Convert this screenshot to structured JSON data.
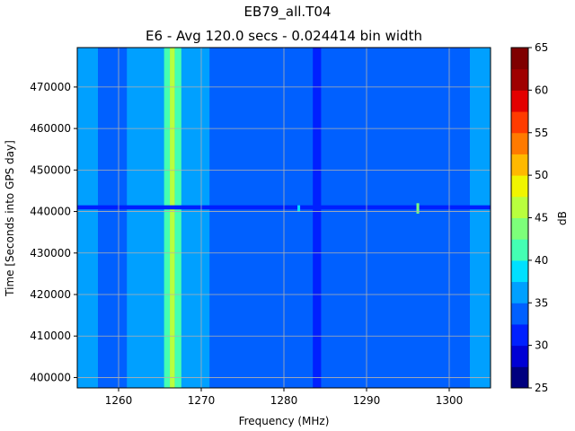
{
  "chart_data": {
    "type": "heatmap",
    "title": "EB79_all.T04",
    "subtitle": "E6 - Avg 120.0 secs - 0.024414 bin width",
    "xlabel": "Frequency (MHz)",
    "ylabel": "Time [Seconds into GPS day]",
    "xlim": [
      1255,
      1305
    ],
    "ylim": [
      397500,
      479500
    ],
    "xticks": [
      1260,
      1270,
      1280,
      1290,
      1300
    ],
    "yticks": [
      400000,
      410000,
      420000,
      430000,
      440000,
      450000,
      460000,
      470000
    ],
    "grid": true,
    "colorbar": {
      "label": "dB",
      "min": 25,
      "max": 65,
      "step": 2.5,
      "ticks": [
        25,
        30,
        35,
        40,
        45,
        50,
        55,
        60,
        65
      ],
      "colors": [
        "#00007f",
        "#0000d4",
        "#0020ff",
        "#0060ff",
        "#00a0ff",
        "#00e0ff",
        "#44ffb3",
        "#7dff7a",
        "#b9ff3e",
        "#f0f500",
        "#ffb900",
        "#ff7a00",
        "#ff3b00",
        "#e30000",
        "#9f0000",
        "#7f0000"
      ]
    },
    "background_level_db": 32.5,
    "features": [
      {
        "type": "vertical_band",
        "x_range": [
          1255.0,
          1257.5
        ],
        "level_db": 36
      },
      {
        "type": "vertical_band",
        "x_range": [
          1257.5,
          1261.0
        ],
        "level_db": 34
      },
      {
        "type": "vertical_band",
        "x_range": [
          1261.0,
          1262.5
        ],
        "level_db": 37
      },
      {
        "type": "vertical_band",
        "x_range": [
          1262.5,
          1265.5
        ],
        "level_db": 35
      },
      {
        "type": "vertical_band",
        "x_range": [
          1265.5,
          1266.2
        ],
        "level_db": 42
      },
      {
        "type": "vertical_band",
        "x_range": [
          1266.2,
          1266.8
        ],
        "level_db": 47
      },
      {
        "type": "vertical_band",
        "x_range": [
          1266.8,
          1267.6
        ],
        "level_db": 42
      },
      {
        "type": "vertical_band",
        "x_range": [
          1267.6,
          1271.0
        ],
        "level_db": 35
      },
      {
        "type": "vertical_band",
        "x_range": [
          1283.5,
          1284.5
        ],
        "level_db": 31
      },
      {
        "type": "vertical_band",
        "x_range": [
          1302.5,
          1305.0
        ],
        "level_db": 35
      },
      {
        "type": "horizontal_band",
        "y_range": [
          440500,
          441500
        ],
        "x_range": [
          1255,
          1305
        ],
        "level_db": 31
      },
      {
        "type": "spot",
        "x": 1296.2,
        "y_range": [
          439500,
          442000
        ],
        "level_db": 44
      },
      {
        "type": "spot",
        "x": 1281.8,
        "y_range": [
          440000,
          441500
        ],
        "level_db": 38
      }
    ]
  }
}
